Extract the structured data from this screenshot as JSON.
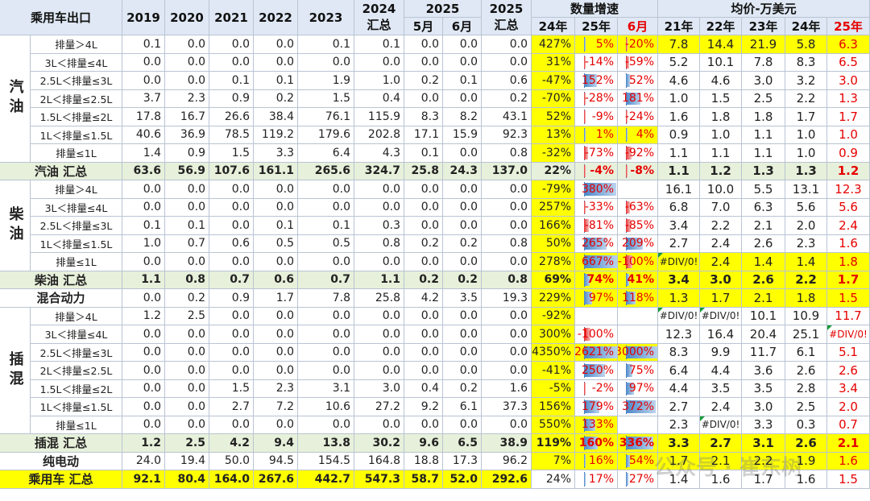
{
  "header": {
    "corner": "乘用车出口",
    "years": [
      "2019",
      "2020",
      "2021",
      "2022",
      "2023"
    ],
    "y2024_top": "2024",
    "y2024_bottom": "汇总",
    "y2025": "2025",
    "may": "5月",
    "jun": "6月",
    "total2025_top": "2025",
    "total2025_bottom": "汇总",
    "growth_group": "数量增速",
    "growth_cols": [
      "24年",
      "25年",
      "6月"
    ],
    "price_group": "均价-万美元",
    "price_cols": [
      "21年",
      "22年",
      "23年",
      "24年",
      "25年"
    ]
  },
  "groups": {
    "petrol": "汽油",
    "diesel": "柴油",
    "phev": "插混"
  },
  "rows": [
    {
      "label": "排量＞4L",
      "vals": [
        "0.1",
        "0.0",
        "0.0",
        "0.0",
        "0.1",
        "0.1",
        "0.0",
        "0.0",
        "0.0"
      ],
      "g": [
        "427%",
        "5%",
        "-20%"
      ],
      "p": [
        "7.8",
        "14.4",
        "21.9",
        "5.8",
        "6.3"
      ]
    },
    {
      "label": "3L＜排量≤4L",
      "vals": [
        "0.0",
        "0.0",
        "0.0",
        "0.0",
        "0.0",
        "0.0",
        "0.0",
        "0.0",
        "0.0"
      ],
      "g": [
        "31%",
        "-14%",
        "-59%"
      ],
      "p": [
        "5.2",
        "10.1",
        "7.8",
        "8.3",
        "6.5"
      ]
    },
    {
      "label": "2.5L＜排量≤3L",
      "vals": [
        "0.0",
        "0.0",
        "0.1",
        "0.1",
        "1.9",
        "1.0",
        "0.2",
        "0.1",
        "0.6"
      ],
      "g": [
        "-47%",
        "152%",
        "52%"
      ],
      "p": [
        "4.6",
        "4.6",
        "3.0",
        "3.2",
        "3.0"
      ]
    },
    {
      "label": "2L＜排量≤2.5L",
      "vals": [
        "3.7",
        "2.3",
        "0.9",
        "0.2",
        "1.5",
        "0.4",
        "0.0",
        "0.0",
        "0.2"
      ],
      "g": [
        "-70%",
        "-28%",
        "181%"
      ],
      "p": [
        "1.0",
        "1.5",
        "2.5",
        "2.2",
        "1.3"
      ]
    },
    {
      "label": "1.5L＜排量≤2L",
      "vals": [
        "17.8",
        "16.7",
        "26.6",
        "38.4",
        "76.1",
        "115.9",
        "8.3",
        "8.2",
        "43.1"
      ],
      "g": [
        "52%",
        "-9%",
        "-24%"
      ],
      "p": [
        "1.6",
        "1.8",
        "1.8",
        "1.7",
        "1.7"
      ]
    },
    {
      "label": "1L＜排量≤1.5L",
      "vals": [
        "40.6",
        "36.9",
        "78.5",
        "119.2",
        "179.6",
        "202.8",
        "17.1",
        "15.9",
        "92.3"
      ],
      "g": [
        "13%",
        "1%",
        "4%"
      ],
      "p": [
        "0.9",
        "1.0",
        "1.1",
        "1.0",
        "1.0"
      ]
    },
    {
      "label": "排量≤1L",
      "vals": [
        "1.4",
        "0.9",
        "1.5",
        "3.3",
        "6.4",
        "4.3",
        "0.1",
        "0.0",
        "0.8"
      ],
      "g": [
        "-32%",
        "-73%",
        "-92%"
      ],
      "p": [
        "1.1",
        "1.1",
        "1.1",
        "1.0",
        "0.9"
      ]
    },
    {
      "label": "汽油 汇总",
      "vals": [
        "63.6",
        "56.9",
        "107.6",
        "161.1",
        "265.6",
        "324.7",
        "25.8",
        "24.3",
        "137.0"
      ],
      "g": [
        "22%",
        "-4%",
        "-8%"
      ],
      "p": [
        "1.1",
        "1.2",
        "1.3",
        "1.3",
        "1.2"
      ]
    },
    {
      "label": "排量＞4L",
      "vals": [
        "0.0",
        "0.0",
        "0.0",
        "0.0",
        "0.0",
        "0.0",
        "0.0",
        "0.0",
        "0.0"
      ],
      "g": [
        "-79%",
        "380%",
        ""
      ],
      "p": [
        "16.1",
        "10.0",
        "5.5",
        "13.1",
        "12.3"
      ]
    },
    {
      "label": "3L＜排量≤4L",
      "vals": [
        "0.0",
        "0.0",
        "0.0",
        "0.0",
        "0.0",
        "0.0",
        "0.0",
        "0.0",
        "0.0"
      ],
      "g": [
        "257%",
        "-33%",
        "-63%"
      ],
      "p": [
        "6.8",
        "7.0",
        "6.3",
        "5.6",
        "5.6"
      ]
    },
    {
      "label": "2.5L＜排量≤3L",
      "vals": [
        "0.1",
        "0.1",
        "0.0",
        "0.1",
        "0.1",
        "0.3",
        "0.0",
        "0.0",
        "0.0"
      ],
      "g": [
        "166%",
        "-81%",
        "-85%"
      ],
      "p": [
        "3.4",
        "2.2",
        "2.1",
        "2.0",
        "2.4"
      ]
    },
    {
      "label": "1L＜排量≤1.5L",
      "vals": [
        "1.0",
        "0.7",
        "0.6",
        "0.5",
        "0.5",
        "0.8",
        "0.2",
        "0.2",
        "0.8"
      ],
      "g": [
        "50%",
        "265%",
        "209%"
      ],
      "p": [
        "2.7",
        "2.4",
        "2.6",
        "2.3",
        "1.6"
      ]
    },
    {
      "label": "排量≤1L",
      "vals": [
        "0.0",
        "0.0",
        "0.0",
        "0.0",
        "0.0",
        "0.0",
        "0.0",
        "0.0",
        "0.0"
      ],
      "g": [
        "278%",
        "667%",
        "-100%"
      ],
      "p": [
        "#DIV/0!",
        "2.4",
        "1.4",
        "1.4",
        "1.8"
      ]
    },
    {
      "label": "柴油 汇总",
      "vals": [
        "1.1",
        "0.8",
        "0.7",
        "0.6",
        "0.7",
        "1.1",
        "0.2",
        "0.2",
        "0.8"
      ],
      "g": [
        "69%",
        "74%",
        "41%"
      ],
      "p": [
        "3.4",
        "3.0",
        "2.6",
        "2.2",
        "1.7"
      ]
    },
    {
      "label": "混合动力",
      "vals": [
        "0.0",
        "0.2",
        "0.9",
        "1.7",
        "7.8",
        "25.8",
        "4.2",
        "3.5",
        "19.3"
      ],
      "g": [
        "229%",
        "97%",
        "118%"
      ],
      "p": [
        "1.3",
        "1.7",
        "2.1",
        "1.8",
        "1.5"
      ]
    },
    {
      "label": "排量＞4L",
      "vals": [
        "1.2",
        "2.5",
        "0.0",
        "0.0",
        "0.0",
        "0.0",
        "0.0",
        "0.0",
        "0.0"
      ],
      "g": [
        "-92%",
        "",
        ""
      ],
      "p": [
        "#DIV/0!",
        "#DIV/0!",
        "10.1",
        "10.9",
        "11.7"
      ]
    },
    {
      "label": "3L＜排量≤4L",
      "vals": [
        "0.0",
        "0.0",
        "0.0",
        "0.0",
        "0.0",
        "0.0",
        "0.0",
        "0.0",
        "0.0"
      ],
      "g": [
        "300%",
        "-100%",
        ""
      ],
      "p": [
        "12.3",
        "16.4",
        "20.4",
        "25.1",
        "#DIV/0!"
      ]
    },
    {
      "label": "2.5L＜排量≤3L",
      "vals": [
        "0.0",
        "0.0",
        "0.0",
        "0.0",
        "0.0",
        "0.0",
        "0.0",
        "0.0",
        "0.0"
      ],
      "g": [
        "4350%",
        "2621%",
        "3000%"
      ],
      "p": [
        "8.3",
        "9.9",
        "11.7",
        "6.1",
        "5.1"
      ]
    },
    {
      "label": "2L＜排量≤2.5L",
      "vals": [
        "0.0",
        "0.0",
        "0.0",
        "0.0",
        "0.0",
        "0.0",
        "0.0",
        "0.0",
        "0.0"
      ],
      "g": [
        "-41%",
        "250%",
        "75%"
      ],
      "p": [
        "6.4",
        "4.4",
        "3.6",
        "2.6",
        "2.6"
      ]
    },
    {
      "label": "1.5L＜排量≤2L",
      "vals": [
        "0.0",
        "0.0",
        "1.5",
        "2.3",
        "3.1",
        "3.0",
        "0.4",
        "0.2",
        "1.6"
      ],
      "g": [
        "-5%",
        "-2%",
        "97%"
      ],
      "p": [
        "4.4",
        "3.5",
        "3.5",
        "2.8",
        "3.4"
      ]
    },
    {
      "label": "1L＜排量≤1.5L",
      "vals": [
        "0.0",
        "0.0",
        "2.7",
        "7.2",
        "10.6",
        "27.2",
        "9.2",
        "6.1",
        "37.3"
      ],
      "g": [
        "156%",
        "179%",
        "372%"
      ],
      "p": [
        "2.7",
        "2.4",
        "3.0",
        "2.5",
        "2.0"
      ]
    },
    {
      "label": "排量≤1L",
      "vals": [
        "0.0",
        "0.0",
        "0.0",
        "0.0",
        "0.0",
        "0.0",
        "0.0",
        "0.0",
        "0.0"
      ],
      "g": [
        "550%",
        "133%",
        ""
      ],
      "p": [
        "2.3",
        "#DIV/0!",
        "3.3",
        "0.3",
        "0.7"
      ]
    },
    {
      "label": "插混 汇总",
      "vals": [
        "1.2",
        "2.5",
        "4.2",
        "9.4",
        "13.8",
        "30.2",
        "9.6",
        "6.5",
        "38.9"
      ],
      "g": [
        "119%",
        "160%",
        "336%"
      ],
      "p": [
        "3.3",
        "2.7",
        "3.1",
        "2.6",
        "2.1"
      ]
    },
    {
      "label": "纯电动",
      "vals": [
        "24.0",
        "19.4",
        "50.0",
        "94.5",
        "154.5",
        "164.8",
        "18.8",
        "17.3",
        "96.2"
      ],
      "g": [
        "7%",
        "16%",
        "54%"
      ],
      "p": [
        "1.7",
        "2.1",
        "2.2",
        "1.9",
        "1.6"
      ]
    },
    {
      "label": "乘用车 汇总",
      "vals": [
        "92.1",
        "80.4",
        "164.0",
        "267.6",
        "442.7",
        "547.3",
        "58.7",
        "52.0",
        "292.6"
      ],
      "g": [
        "24%",
        "17%",
        "27%"
      ],
      "p": [
        "1.4",
        "1.6",
        "1.7",
        "1.6",
        "1.5"
      ]
    }
  ],
  "watermark": "公众号 · 崔东树",
  "colors": {
    "header": "#dfe8f4",
    "subtotal": "#e7f0da",
    "highlight": "#ffff00",
    "negative": "#e60000",
    "bar": "#4a86c8"
  }
}
